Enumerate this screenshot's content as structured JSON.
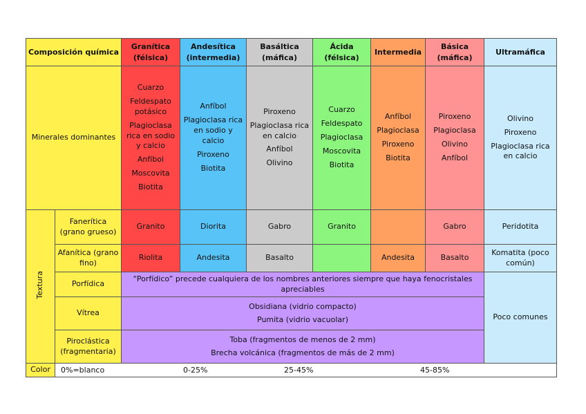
{
  "header": {
    "composicion": "Composición química",
    "cols": [
      {
        "title": "Granítica",
        "sub": "(félsica)"
      },
      {
        "title": "Andesítica",
        "sub": "(intermedia)"
      },
      {
        "title": "Basáltica",
        "sub": "(máfica)"
      },
      {
        "title": "Ácida",
        "sub": "(félsica)"
      },
      {
        "title": "Intermedia",
        "sub": ""
      },
      {
        "title": "Básica",
        "sub": "(máfica)"
      },
      {
        "title": "Ultramáfica",
        "sub": ""
      }
    ]
  },
  "minerales": {
    "label": "Minerales dominantes",
    "granitica": [
      "Cuarzo",
      "Feldespato potásico",
      "Plagioclasa rica en sodio y calcio",
      "Anfíbol",
      "Moscovita",
      "Biotita"
    ],
    "andesitica": [
      "Anfíbol",
      "Plagioclasa rica en sodio y calcio",
      "Piroxeno",
      "Biotita"
    ],
    "basaltica": [
      "Piroxeno",
      "Plagioclasa rica en calcio",
      "Anfíbol",
      "Olivino"
    ],
    "acida": [
      "Cuarzo",
      "Feldespato",
      "Plagioclasa",
      "Moscovita",
      "Biotita"
    ],
    "intermedia": [
      "Anfíbol",
      "Plagioclasa",
      "Piroxeno",
      "Biotita"
    ],
    "basica": [
      "Piroxeno",
      "Plagioclasa",
      "Olivino",
      "Anfíbol"
    ],
    "ultramafica": [
      "Olivino",
      "Piroxeno",
      "Plagioclasa rica en calcio"
    ]
  },
  "textura": {
    "label": "Textura",
    "faneritica": {
      "label": "Fanerítica (grano grueso)",
      "cells": [
        "Granito",
        "Diorita",
        "Gabro",
        "Granito",
        "",
        "Gabro",
        "Peridotita"
      ]
    },
    "afanitica": {
      "label": "Afanítica (grano fino)",
      "cells": [
        "Riolita",
        "Andesita",
        "Basalto",
        "",
        "Andesita",
        "Basalto",
        "Komatita (poco común)"
      ]
    },
    "porfidica": {
      "label": "Porfídica",
      "text": "“Porfídico” precede cualquiera de los nombres anteriores siempre que haya fenocristales apreciables"
    },
    "vitrea": {
      "label": "Vítrea",
      "lines": [
        "Obsidiana (vidrio compacto)",
        "Pumita (vidrio vacuolar)"
      ]
    },
    "piroclastica": {
      "label": "Piroclástica (fragmentaria)",
      "lines": [
        "Toba (fragmentos de menos de 2 mm)",
        "Brecha volcánica (fragmentos de más de 2 mm)"
      ]
    },
    "poco_comunes": "Poco comunes"
  },
  "color": {
    "label": "Color",
    "values": [
      "0%=blanco",
      "0-25%",
      "25-45%",
      "45-85%"
    ]
  }
}
